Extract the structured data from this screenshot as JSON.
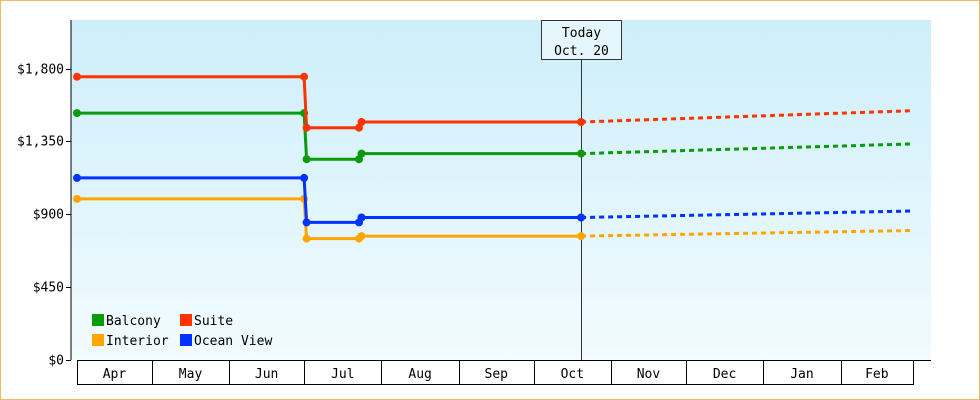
{
  "chart_data": {
    "type": "line",
    "title": "",
    "xlabel": "",
    "ylabel": "",
    "ylim": [
      0,
      2100
    ],
    "y_ticks": [
      {
        "value": 0,
        "label": "$0"
      },
      {
        "value": 450,
        "label": "$450"
      },
      {
        "value": 900,
        "label": "$900"
      },
      {
        "value": 1350,
        "label": "$1,350"
      },
      {
        "value": 1800,
        "label": "$1,800"
      }
    ],
    "x_domain": [
      "2023-04-01",
      "2024-03-01"
    ],
    "months": [
      {
        "label": "Apr",
        "start": "2023-04-01"
      },
      {
        "label": "May",
        "start": "2023-05-01"
      },
      {
        "label": "Jun",
        "start": "2023-06-01"
      },
      {
        "label": "Jul",
        "start": "2023-07-01"
      },
      {
        "label": "Aug",
        "start": "2023-08-01"
      },
      {
        "label": "Sep",
        "start": "2023-09-01"
      },
      {
        "label": "Oct",
        "start": "2023-10-01"
      },
      {
        "label": "Nov",
        "start": "2023-11-01"
      },
      {
        "label": "Dec",
        "start": "2023-12-01"
      },
      {
        "label": "Jan",
        "start": "2024-01-01"
      },
      {
        "label": "Feb",
        "start": "2024-02-01"
      }
    ],
    "today": {
      "date": "2023-10-20",
      "line1": "Today",
      "line2": "Oct. 20"
    },
    "grid": false,
    "legend_position": "bottom-left",
    "series": [
      {
        "name": "Balcony",
        "color": "#0a9a0a",
        "points": [
          {
            "x": "2023-04-01",
            "y": 1525
          },
          {
            "x": "2023-07-01",
            "y": 1525
          },
          {
            "x": "2023-07-02",
            "y": 1240
          },
          {
            "x": "2023-07-23",
            "y": 1240
          },
          {
            "x": "2023-07-24",
            "y": 1275
          },
          {
            "x": "2023-10-20",
            "y": 1275
          }
        ],
        "forecast": [
          {
            "x": "2023-10-20",
            "y": 1275
          },
          {
            "x": "2024-03-01",
            "y": 1335
          }
        ]
      },
      {
        "name": "Suite",
        "color": "#ff3300",
        "points": [
          {
            "x": "2023-04-01",
            "y": 1750
          },
          {
            "x": "2023-07-01",
            "y": 1750
          },
          {
            "x": "2023-07-02",
            "y": 1435
          },
          {
            "x": "2023-07-23",
            "y": 1435
          },
          {
            "x": "2023-07-24",
            "y": 1470
          },
          {
            "x": "2023-10-20",
            "y": 1470
          }
        ],
        "forecast": [
          {
            "x": "2023-10-20",
            "y": 1470
          },
          {
            "x": "2024-03-01",
            "y": 1540
          }
        ]
      },
      {
        "name": "Interior",
        "color": "#ffa500",
        "points": [
          {
            "x": "2023-04-01",
            "y": 995
          },
          {
            "x": "2023-07-01",
            "y": 995
          },
          {
            "x": "2023-07-02",
            "y": 750
          },
          {
            "x": "2023-07-23",
            "y": 750
          },
          {
            "x": "2023-07-24",
            "y": 765
          },
          {
            "x": "2023-10-20",
            "y": 765
          }
        ],
        "forecast": [
          {
            "x": "2023-10-20",
            "y": 765
          },
          {
            "x": "2024-03-01",
            "y": 800
          }
        ]
      },
      {
        "name": "Ocean View",
        "color": "#0033ff",
        "points": [
          {
            "x": "2023-04-01",
            "y": 1125
          },
          {
            "x": "2023-07-01",
            "y": 1125
          },
          {
            "x": "2023-07-02",
            "y": 850
          },
          {
            "x": "2023-07-23",
            "y": 850
          },
          {
            "x": "2023-07-24",
            "y": 880
          },
          {
            "x": "2023-10-20",
            "y": 880
          }
        ],
        "forecast": [
          {
            "x": "2023-10-20",
            "y": 880
          },
          {
            "x": "2024-03-01",
            "y": 920
          }
        ]
      }
    ],
    "legend": [
      {
        "name": "Balcony",
        "color": "#0a9a0a"
      },
      {
        "name": "Suite",
        "color": "#ff3300"
      },
      {
        "name": "Interior",
        "color": "#ffa500"
      },
      {
        "name": "Ocean View",
        "color": "#0033ff"
      }
    ]
  }
}
